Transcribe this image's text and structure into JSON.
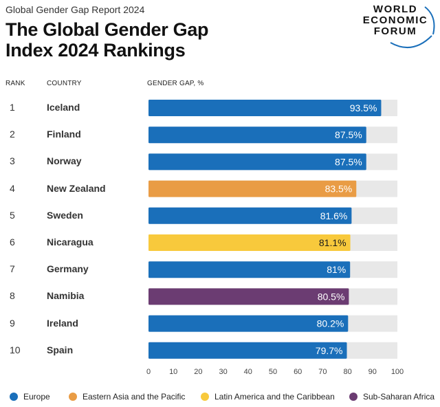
{
  "header": {
    "subtitle": "Global Gender Gap Report 2024",
    "title_line1": "The Global Gender Gap",
    "title_line2": "Index 2024 Rankings"
  },
  "logo": {
    "line1": "WORLD",
    "line2": "ECONOMIC",
    "line3": "FORUM"
  },
  "columns": {
    "rank": "RANK",
    "country": "COUNTRY",
    "gap": "GENDER GAP, %"
  },
  "colors": {
    "Europe": "#1a6fba",
    "Eastern Asia and the Pacific": "#e99c45",
    "Latin America and the Caribbean": "#f8c93c",
    "Sub-Saharan Africa": "#6b3c72",
    "track": "#e8e8e8"
  },
  "legend": [
    {
      "name": "Europe",
      "color": "#1a6fba"
    },
    {
      "name": "Eastern Asia and the Pacific",
      "color": "#e99c45"
    },
    {
      "name": "Latin America and the Caribbean",
      "color": "#f8c93c"
    },
    {
      "name": "Sub-Saharan Africa",
      "color": "#6b3c72"
    }
  ],
  "chart_data": {
    "type": "bar",
    "orientation": "horizontal",
    "xlim": [
      0,
      100
    ],
    "xticks": [
      0,
      10,
      20,
      30,
      40,
      50,
      60,
      70,
      80,
      90,
      100
    ],
    "rows": [
      {
        "rank": "1",
        "country": "Iceland",
        "value": 93.5,
        "label": "93.5%",
        "region": "Europe"
      },
      {
        "rank": "2",
        "country": "Finland",
        "value": 87.5,
        "label": "87.5%",
        "region": "Europe"
      },
      {
        "rank": "3",
        "country": "Norway",
        "value": 87.5,
        "label": "87.5%",
        "region": "Europe"
      },
      {
        "rank": "4",
        "country": "New Zealand",
        "value": 83.5,
        "label": "83.5%",
        "region": "Eastern Asia and the Pacific"
      },
      {
        "rank": "5",
        "country": "Sweden",
        "value": 81.6,
        "label": "81.6%",
        "region": "Europe"
      },
      {
        "rank": "6",
        "country": "Nicaragua",
        "value": 81.1,
        "label": "81.1%",
        "region": "Latin America and the Caribbean"
      },
      {
        "rank": "7",
        "country": "Germany",
        "value": 81,
        "label": "81%",
        "region": "Europe"
      },
      {
        "rank": "8",
        "country": "Namibia",
        "value": 80.5,
        "label": "80.5%",
        "region": "Sub-Saharan Africa"
      },
      {
        "rank": "9",
        "country": "Ireland",
        "value": 80.2,
        "label": "80.2%",
        "region": "Europe"
      },
      {
        "rank": "10",
        "country": "Spain",
        "value": 79.7,
        "label": "79.7%",
        "region": "Europe"
      }
    ]
  }
}
